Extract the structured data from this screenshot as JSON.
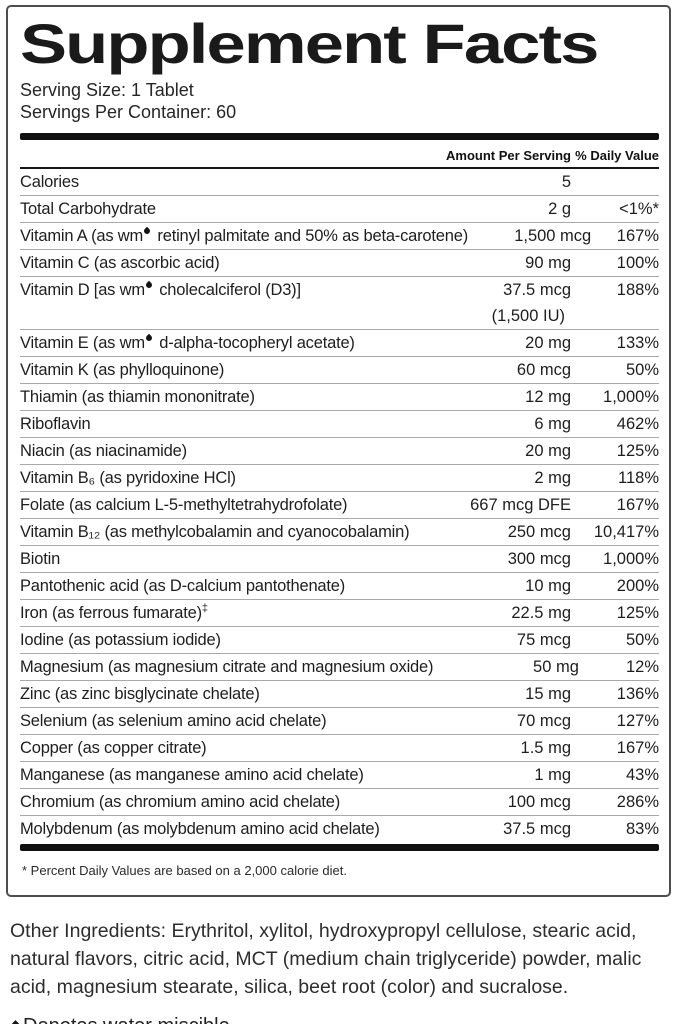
{
  "label": {
    "title": "Supplement Facts",
    "serving_size": "Serving Size: 1 Tablet",
    "servings_per_container": "Servings Per Container: 60",
    "columns": {
      "amount": "Amount Per Serving",
      "daily_value": "% Daily Value"
    },
    "rows": [
      {
        "name": "Calories",
        "amount": "5",
        "dv": ""
      },
      {
        "name": "Total Carbohydrate",
        "amount": "2 g",
        "dv": "<1%*"
      },
      {
        "name": "Vitamin A (as wm♦ retinyl palmitate and 50% as beta-carotene)",
        "amount": "1,500 mcg",
        "dv": "167%"
      },
      {
        "name": "Vitamin C (as ascorbic acid)",
        "amount": "90 mg",
        "dv": "100%"
      },
      {
        "name": "Vitamin D [as wm♦ cholecalciferol (D3)]",
        "amount": "37.5 mcg",
        "amount2": "(1,500 IU)",
        "dv": "188%"
      },
      {
        "name": "Vitamin E (as wm♦ d-alpha-tocopheryl acetate)",
        "amount": "20 mg",
        "dv": "133%"
      },
      {
        "name": "Vitamin K (as phylloquinone)",
        "amount": "60 mcg",
        "dv": "50%"
      },
      {
        "name": "Thiamin (as thiamin mononitrate)",
        "amount": "12 mg",
        "dv": "1,000%"
      },
      {
        "name": "Riboflavin",
        "amount": "6 mg",
        "dv": "462%"
      },
      {
        "name": "Niacin (as niacinamide)",
        "amount": "20 mg",
        "dv": "125%"
      },
      {
        "name": "Vitamin B₆ (as pyridoxine HCl)",
        "amount": "2 mg",
        "dv": "118%"
      },
      {
        "name": "Folate (as calcium L-5-methyltetrahydrofolate)",
        "amount": "667 mcg DFE",
        "dv": "167%"
      },
      {
        "name": "Vitamin B₁₂ (as methylcobalamin and cyanocobalamin)",
        "amount": "250 mcg",
        "dv": "10,417%"
      },
      {
        "name": "Biotin",
        "amount": "300 mcg",
        "dv": "1,000%"
      },
      {
        "name": "Pantothenic acid (as D-calcium pantothenate)",
        "amount": "10 mg",
        "dv": "200%"
      },
      {
        "name": "Iron (as ferrous fumarate)‡",
        "amount": "22.5 mg",
        "dv": "125%"
      },
      {
        "name": "Iodine (as potassium iodide)",
        "amount": "75 mcg",
        "dv": "50%"
      },
      {
        "name": "Magnesium (as magnesium citrate and magnesium oxide)",
        "amount": "50 mg",
        "dv": "12%"
      },
      {
        "name": "Zinc (as zinc bisglycinate chelate)",
        "amount": "15 mg",
        "dv": "136%"
      },
      {
        "name": "Selenium (as selenium amino acid chelate)",
        "amount": "70 mcg",
        "dv": "127%"
      },
      {
        "name": "Copper (as copper citrate)",
        "amount": "1.5 mg",
        "dv": "167%"
      },
      {
        "name": "Manganese (as manganese amino acid chelate)",
        "amount": "1 mg",
        "dv": "43%"
      },
      {
        "name": "Chromium (as chromium amino acid chelate)",
        "amount": "100 mcg",
        "dv": "286%"
      },
      {
        "name": "Molybdenum (as molybdenum amino acid chelate)",
        "amount": "37.5 mcg",
        "dv": "83%"
      }
    ],
    "footnote": "* Percent Daily Values are based on a 2,000 calorie diet."
  },
  "other_ingredients": "Other Ingredients: Erythritol, xylitol, hydroxypropyl cellulose, stearic acid, natural flavors, citric acid, MCT (medium chain triglyceride) powder, malic acid, magnesium stearate, silica, beet root (color) and sucralose.",
  "water_miscible_note": "♦Denotes water miscible",
  "symbols": {
    "droplet": "♦",
    "double_dagger": "‡"
  },
  "colors": {
    "text": "#1c1c1c",
    "heavy_rule": "#101010",
    "row_rule": "#a9a9a9",
    "panel_border": "#4d4d4d",
    "background": "#ffffff"
  }
}
